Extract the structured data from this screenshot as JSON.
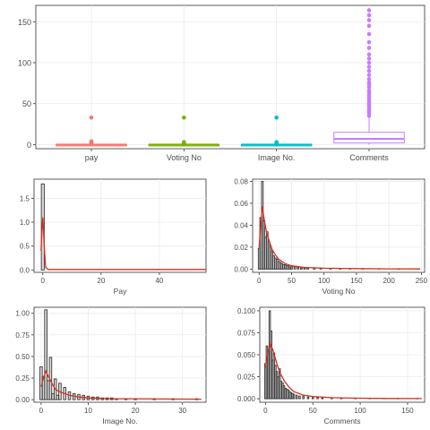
{
  "colors": {
    "pay": "#F8766D",
    "voting": "#7CAE00",
    "image": "#00BFC4",
    "comments": "#C77CFF",
    "density": "#D7301F",
    "bars": "#333333"
  },
  "chart_data": [
    {
      "type": "box",
      "categories": [
        "pay",
        "Voting No",
        "Image No.",
        "Comments"
      ],
      "ylim": [
        -5,
        170
      ],
      "yticks": [
        0,
        50,
        100,
        150
      ],
      "grid": true,
      "boxes": [
        {
          "name": "pay",
          "q1": 0,
          "median": 0,
          "q3": 0,
          "whisker_low": 0,
          "whisker_high": 0,
          "outliers": [
            1,
            2,
            3,
            4,
            33
          ]
        },
        {
          "name": "Voting No",
          "q1": 0,
          "median": 0,
          "q3": 0,
          "whisker_low": 0,
          "whisker_high": 0,
          "outliers": [
            1,
            2,
            3,
            33
          ]
        },
        {
          "name": "Image No.",
          "q1": 0,
          "median": 0,
          "q3": 0,
          "whisker_low": 0,
          "whisker_high": 0,
          "outliers": [
            1,
            2,
            3,
            33
          ]
        },
        {
          "name": "Comments",
          "q1": 2,
          "median": 7,
          "q3": 15,
          "whisker_low": 0,
          "whisker_high": 33,
          "outliers": [
            35,
            38,
            40,
            42,
            45,
            48,
            50,
            52,
            55,
            58,
            60,
            63,
            66,
            70,
            73,
            76,
            80,
            85,
            90,
            95,
            100,
            105,
            110,
            118,
            125,
            135,
            145,
            152,
            158,
            164
          ]
        }
      ]
    },
    {
      "type": "histogram",
      "xlabel": "Pay",
      "xlim": [
        -3,
        56
      ],
      "ylim": [
        -0.05,
        1.9
      ],
      "xticks": [
        0,
        20,
        40
      ],
      "yticks": [
        0,
        0.5,
        1,
        1.5
      ],
      "ytick_labels": [
        "0.0",
        "0.5",
        "1.0",
        "1.5"
      ],
      "grid": true,
      "binwidth": 1,
      "bins": [
        {
          "x": 0,
          "h": 1.8
        }
      ],
      "density": [
        [
          -0.6,
          0.4
        ],
        [
          -0.3,
          0.8
        ],
        [
          0,
          1.1
        ],
        [
          0.3,
          0.8
        ],
        [
          0.6,
          0.4
        ],
        [
          1,
          0.05
        ],
        [
          2,
          0.01
        ],
        [
          56,
          0.01
        ]
      ]
    },
    {
      "type": "histogram",
      "xlabel": "Voting No",
      "xlim": [
        -10,
        255
      ],
      "ylim": [
        -0.003,
        0.082
      ],
      "xticks": [
        0,
        50,
        100,
        150,
        200,
        250
      ],
      "yticks": [
        0,
        0.02,
        0.04,
        0.06,
        0.08
      ],
      "ytick_labels": [
        "0.00",
        "0.02",
        "0.04",
        "0.06",
        "0.08"
      ],
      "grid": true,
      "binwidth": 2.5,
      "bins": [
        {
          "x": 0,
          "h": 0.019
        },
        {
          "x": 2.5,
          "h": 0.047
        },
        {
          "x": 5,
          "h": 0.08
        },
        {
          "x": 7.5,
          "h": 0.044
        },
        {
          "x": 10,
          "h": 0.029
        },
        {
          "x": 12.5,
          "h": 0.034
        },
        {
          "x": 15,
          "h": 0.025
        },
        {
          "x": 17.5,
          "h": 0.02
        },
        {
          "x": 20,
          "h": 0.016
        },
        {
          "x": 22.5,
          "h": 0.012
        },
        {
          "x": 25,
          "h": 0.01
        },
        {
          "x": 27.5,
          "h": 0.009
        },
        {
          "x": 30,
          "h": 0.007
        },
        {
          "x": 32.5,
          "h": 0.006
        },
        {
          "x": 35,
          "h": 0.005
        },
        {
          "x": 37.5,
          "h": 0.004
        },
        {
          "x": 40,
          "h": 0.004
        },
        {
          "x": 42.5,
          "h": 0.003
        },
        {
          "x": 45,
          "h": 0.003
        },
        {
          "x": 47.5,
          "h": 0.002
        },
        {
          "x": 50,
          "h": 0.002
        },
        {
          "x": 55,
          "h": 0.002
        },
        {
          "x": 60,
          "h": 0.0015
        },
        {
          "x": 65,
          "h": 0.001
        },
        {
          "x": 70,
          "h": 0.001
        },
        {
          "x": 75,
          "h": 0.001
        },
        {
          "x": 85,
          "h": 0.0008
        },
        {
          "x": 95,
          "h": 0.0006
        },
        {
          "x": 110,
          "h": 0.0005
        },
        {
          "x": 125,
          "h": 0.0004
        },
        {
          "x": 140,
          "h": 0.0004
        },
        {
          "x": 160,
          "h": 0.0003
        },
        {
          "x": 185,
          "h": 0.0003
        },
        {
          "x": 215,
          "h": 0.0002
        },
        {
          "x": 245,
          "h": 0.0002
        }
      ],
      "density": [
        [
          0,
          0.02
        ],
        [
          3,
          0.045
        ],
        [
          5,
          0.057
        ],
        [
          8,
          0.045
        ],
        [
          12,
          0.032
        ],
        [
          16,
          0.025
        ],
        [
          20,
          0.018
        ],
        [
          25,
          0.013
        ],
        [
          30,
          0.009
        ],
        [
          40,
          0.005
        ],
        [
          50,
          0.003
        ],
        [
          70,
          0.0015
        ],
        [
          100,
          0.0008
        ],
        [
          150,
          0.0004
        ],
        [
          200,
          0.0002
        ],
        [
          248,
          0.0001
        ]
      ]
    },
    {
      "type": "histogram",
      "xlabel": "Image No.",
      "xlim": [
        -1.5,
        35
      ],
      "ylim": [
        -0.03,
        1.07
      ],
      "xticks": [
        0,
        10,
        20,
        30
      ],
      "yticks": [
        0,
        0.25,
        0.5,
        0.75,
        1.0
      ],
      "ytick_labels": [
        "0.00",
        "0.25",
        "0.50",
        "0.75",
        "1.00"
      ],
      "grid": true,
      "binwidth": 0.5,
      "bins": [
        {
          "x": 0,
          "h": 0.38
        },
        {
          "x": 0.5,
          "h": 0.27
        },
        {
          "x": 1,
          "h": 1.04
        },
        {
          "x": 1.5,
          "h": 0.22
        },
        {
          "x": 2,
          "h": 0.49
        },
        {
          "x": 2.5,
          "h": 0.07
        },
        {
          "x": 3,
          "h": 0.24
        },
        {
          "x": 3.5,
          "h": 0.05
        },
        {
          "x": 4,
          "h": 0.19
        },
        {
          "x": 5,
          "h": 0.14
        },
        {
          "x": 6,
          "h": 0.09
        },
        {
          "x": 7,
          "h": 0.07
        },
        {
          "x": 8,
          "h": 0.06
        },
        {
          "x": 9,
          "h": 0.05
        },
        {
          "x": 10,
          "h": 0.04
        },
        {
          "x": 11,
          "h": 0.03
        },
        {
          "x": 12,
          "h": 0.03
        },
        {
          "x": 13,
          "h": 0.02
        },
        {
          "x": 14,
          "h": 0.02
        },
        {
          "x": 15,
          "h": 0.02
        },
        {
          "x": 16,
          "h": 0.01
        },
        {
          "x": 18,
          "h": 0.01
        },
        {
          "x": 20,
          "h": 0.01
        },
        {
          "x": 24,
          "h": 0.01
        },
        {
          "x": 28,
          "h": 0.01
        },
        {
          "x": 33,
          "h": 0.01
        }
      ],
      "density": [
        [
          0,
          0.15
        ],
        [
          0.5,
          0.25
        ],
        [
          1,
          0.33
        ],
        [
          1.5,
          0.27
        ],
        [
          2,
          0.22
        ],
        [
          3,
          0.12
        ],
        [
          4,
          0.09
        ],
        [
          5,
          0.07
        ],
        [
          6,
          0.05
        ],
        [
          8,
          0.03
        ],
        [
          10,
          0.02
        ],
        [
          15,
          0.01
        ],
        [
          20,
          0.01
        ],
        [
          34,
          0.005
        ]
      ]
    },
    {
      "type": "histogram",
      "xlabel": "Comments",
      "xlim": [
        -6,
        168
      ],
      "ylim": [
        -0.004,
        0.104
      ],
      "xticks": [
        0,
        50,
        100,
        150
      ],
      "yticks": [
        0,
        0.025,
        0.05,
        0.075,
        0.1
      ],
      "ytick_labels": [
        "0.000",
        "0.025",
        "0.050",
        "0.075",
        "0.100"
      ],
      "grid": true,
      "binwidth": 1.5,
      "bins": [
        {
          "x": 0,
          "h": 0.04
        },
        {
          "x": 1.5,
          "h": 0.06
        },
        {
          "x": 3,
          "h": 0.055
        },
        {
          "x": 4.5,
          "h": 0.1
        },
        {
          "x": 6,
          "h": 0.077
        },
        {
          "x": 7.5,
          "h": 0.044
        },
        {
          "x": 9,
          "h": 0.052
        },
        {
          "x": 10.5,
          "h": 0.038
        },
        {
          "x": 12,
          "h": 0.031
        },
        {
          "x": 13.5,
          "h": 0.025
        },
        {
          "x": 15,
          "h": 0.034
        },
        {
          "x": 16.5,
          "h": 0.02
        },
        {
          "x": 18,
          "h": 0.018
        },
        {
          "x": 19.5,
          "h": 0.015
        },
        {
          "x": 21,
          "h": 0.012
        },
        {
          "x": 22.5,
          "h": 0.011
        },
        {
          "x": 24,
          "h": 0.01
        },
        {
          "x": 25.5,
          "h": 0.008
        },
        {
          "x": 27,
          "h": 0.007
        },
        {
          "x": 28.5,
          "h": 0.006
        },
        {
          "x": 30,
          "h": 0.005
        },
        {
          "x": 33,
          "h": 0.004
        },
        {
          "x": 36,
          "h": 0.003
        },
        {
          "x": 40,
          "h": 0.003
        },
        {
          "x": 45,
          "h": 0.002
        },
        {
          "x": 50,
          "h": 0.002
        },
        {
          "x": 55,
          "h": 0.0015
        },
        {
          "x": 60,
          "h": 0.001
        },
        {
          "x": 70,
          "h": 0.001
        },
        {
          "x": 80,
          "h": 0.0008
        },
        {
          "x": 95,
          "h": 0.0006
        },
        {
          "x": 110,
          "h": 0.0005
        },
        {
          "x": 125,
          "h": 0.0004
        },
        {
          "x": 140,
          "h": 0.0003
        },
        {
          "x": 160,
          "h": 0.0003
        }
      ],
      "density": [
        [
          0,
          0.035
        ],
        [
          3,
          0.055
        ],
        [
          5,
          0.063
        ],
        [
          8,
          0.055
        ],
        [
          12,
          0.04
        ],
        [
          15,
          0.03
        ],
        [
          20,
          0.02
        ],
        [
          25,
          0.013
        ],
        [
          30,
          0.008
        ],
        [
          40,
          0.004
        ],
        [
          50,
          0.0025
        ],
        [
          70,
          0.0012
        ],
        [
          100,
          0.0006
        ],
        [
          130,
          0.0003
        ],
        [
          165,
          0.0002
        ]
      ]
    }
  ]
}
